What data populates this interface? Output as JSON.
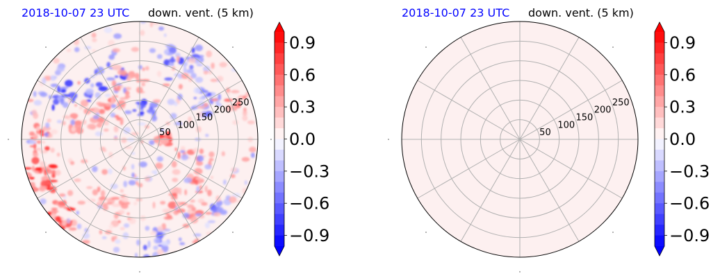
{
  "chart_data": [
    {
      "type": "heatmap",
      "projection": "polar",
      "title_left": "2018-10-07 23 UTC",
      "title_right": "down. vent. (5 km)",
      "title_left_color": "#0000ff",
      "radial_ticks": [
        "50",
        "100",
        "150",
        "200",
        "250"
      ],
      "radial_values": [
        50,
        100,
        150,
        200,
        250
      ],
      "r_max": 300,
      "angular_gridlines_deg": [
        0,
        30,
        60,
        90,
        120,
        150,
        180,
        210,
        240,
        270,
        300,
        330
      ],
      "grid": true,
      "colormap": "bwr",
      "value_range": [
        -1.0,
        1.0
      ],
      "field_description": "scattered positive (red) and negative (blue) patches, strongest near edges",
      "colorbar": {
        "ticks": [
          "0.9",
          "0.6",
          "0.3",
          "0.0",
          "−0.3",
          "−0.6",
          "−0.9"
        ],
        "tick_values": [
          0.9,
          0.6,
          0.3,
          0.0,
          -0.3,
          -0.6,
          -0.9
        ],
        "extend": "both",
        "levels": 20
      }
    },
    {
      "type": "heatmap",
      "projection": "polar",
      "title_left": "2018-10-07 23 UTC",
      "title_right": "down. vent. (5 km)",
      "title_left_color": "#0000ff",
      "radial_ticks": [
        "50",
        "100",
        "150",
        "200",
        "250"
      ],
      "radial_values": [
        50,
        100,
        150,
        200,
        250
      ],
      "r_max": 300,
      "angular_gridlines_deg": [
        0,
        30,
        60,
        90,
        120,
        150,
        180,
        210,
        240,
        270,
        300,
        330
      ],
      "grid": true,
      "colormap": "bwr",
      "value_range": [
        -1.0,
        1.0
      ],
      "uniform_value": 0.02,
      "field_color": "#fdf0f0",
      "colorbar": {
        "ticks": [
          "0.9",
          "0.6",
          "0.3",
          "0.0",
          "−0.3",
          "−0.6",
          "−0.9"
        ],
        "tick_values": [
          0.9,
          0.6,
          0.3,
          0.0,
          -0.3,
          -0.6,
          -0.9
        ],
        "extend": "both",
        "levels": 20
      }
    }
  ]
}
